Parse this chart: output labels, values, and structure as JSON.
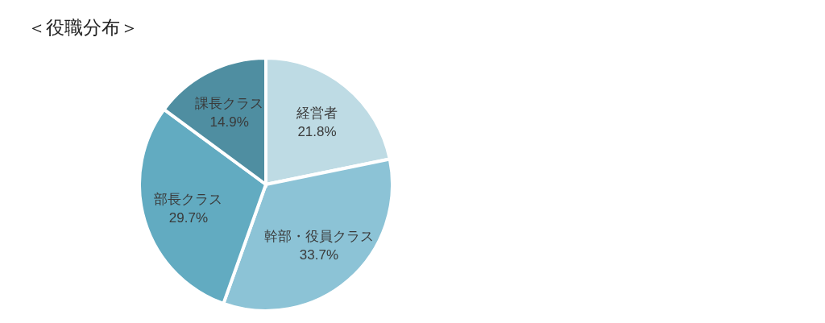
{
  "chart_data": {
    "type": "pie",
    "title": "＜役職分布＞",
    "categories": [
      "経営者",
      "幹部・役員クラス",
      "部長クラス",
      "課長クラス"
    ],
    "values": [
      21.8,
      33.7,
      29.7,
      14.9
    ],
    "value_labels": [
      "21.8%",
      "33.7%",
      "29.7%",
      "14.9%"
    ],
    "colors": [
      "#bedbe4",
      "#8cc3d6",
      "#62abc1",
      "#4f8ea1"
    ]
  }
}
